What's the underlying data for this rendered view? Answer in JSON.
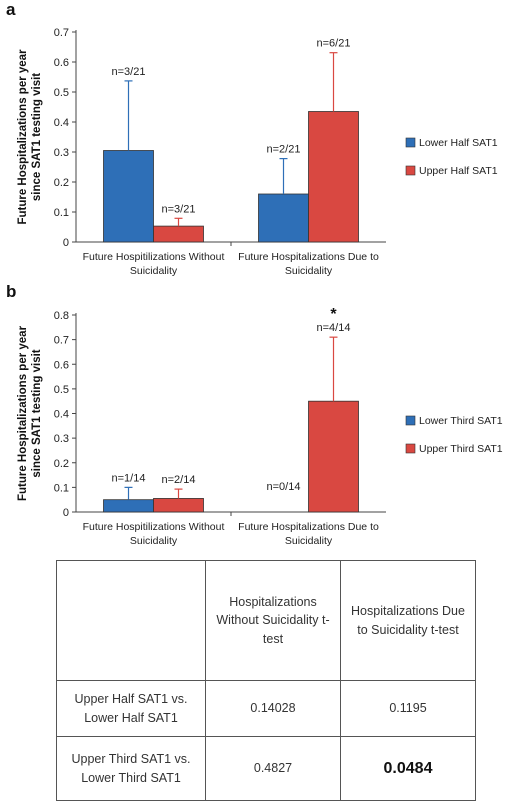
{
  "chart_data": [
    {
      "panel": "a",
      "type": "bar",
      "categories": [
        "Future Hospitilizations Without Suicidality",
        "Future Hospitalizations Due to Suicidality"
      ],
      "category_lines": [
        [
          "Future Hospitilizations Without",
          "Suicidality"
        ],
        [
          "Future Hospitalizations Due to",
          "Suicidality"
        ]
      ],
      "ylabel_lines": [
        "Future Hospitalizations per year",
        "since SAT1 testing visit"
      ],
      "ylim": [
        0,
        0.7
      ],
      "yticks": [
        0,
        0.1,
        0.2,
        0.3,
        0.4,
        0.5,
        0.6,
        0.7
      ],
      "legend_position": "right",
      "series": [
        {
          "name": "Lower Half SAT1",
          "color": "#2e6fb7",
          "values": [
            0.305,
            0.16
          ],
          "errors": [
            0.232,
            0.118
          ],
          "labels": [
            "n=3/21",
            "n=2/21"
          ]
        },
        {
          "name": "Upper Half SAT1",
          "color": "#d94841",
          "values": [
            0.053,
            0.435
          ],
          "errors": [
            0.026,
            0.196
          ],
          "labels": [
            "n=3/21",
            "n=6/21"
          ]
        }
      ]
    },
    {
      "panel": "b",
      "type": "bar",
      "categories": [
        "Future Hospitilizations Without Suicidality",
        "Future Hospitalizations Due to Suicidality"
      ],
      "category_lines": [
        [
          "Future Hospitilizations Without",
          "Suicidality"
        ],
        [
          "Future Hospitalizations Due to",
          "Suicidality"
        ]
      ],
      "ylabel_lines": [
        "Future Hospitalizations per year",
        "since SAT1 testing visit"
      ],
      "ylim": [
        0,
        0.8
      ],
      "yticks": [
        0,
        0.1,
        0.2,
        0.3,
        0.4,
        0.5,
        0.6,
        0.7,
        0.8
      ],
      "legend_position": "right",
      "annotation": "*",
      "series": [
        {
          "name": "Lower Third SAT1",
          "color": "#2e6fb7",
          "values": [
            0.05,
            0
          ],
          "errors": [
            0.05,
            0
          ],
          "labels": [
            "n=1/14",
            ""
          ]
        },
        {
          "name": "Upper Third SAT1",
          "color": "#d94841",
          "values": [
            0.055,
            0.45
          ],
          "errors": [
            0.038,
            0.26
          ],
          "labels": [
            "n=2/14",
            "n=4/14"
          ]
        }
      ],
      "group_labels": [
        "",
        "n=0/14"
      ]
    }
  ],
  "table": {
    "header": [
      "",
      "Hospitalizations Without Suicidality t-test",
      "Hospitalizations Due to Suicidality t-test"
    ],
    "rows": [
      [
        "Upper Half SAT1 vs. Lower Half SAT1",
        "0.14028",
        "0.1195"
      ],
      [
        "Upper Third SAT1 vs. Lower Third SAT1",
        "0.4827",
        "0.0484"
      ]
    ]
  }
}
